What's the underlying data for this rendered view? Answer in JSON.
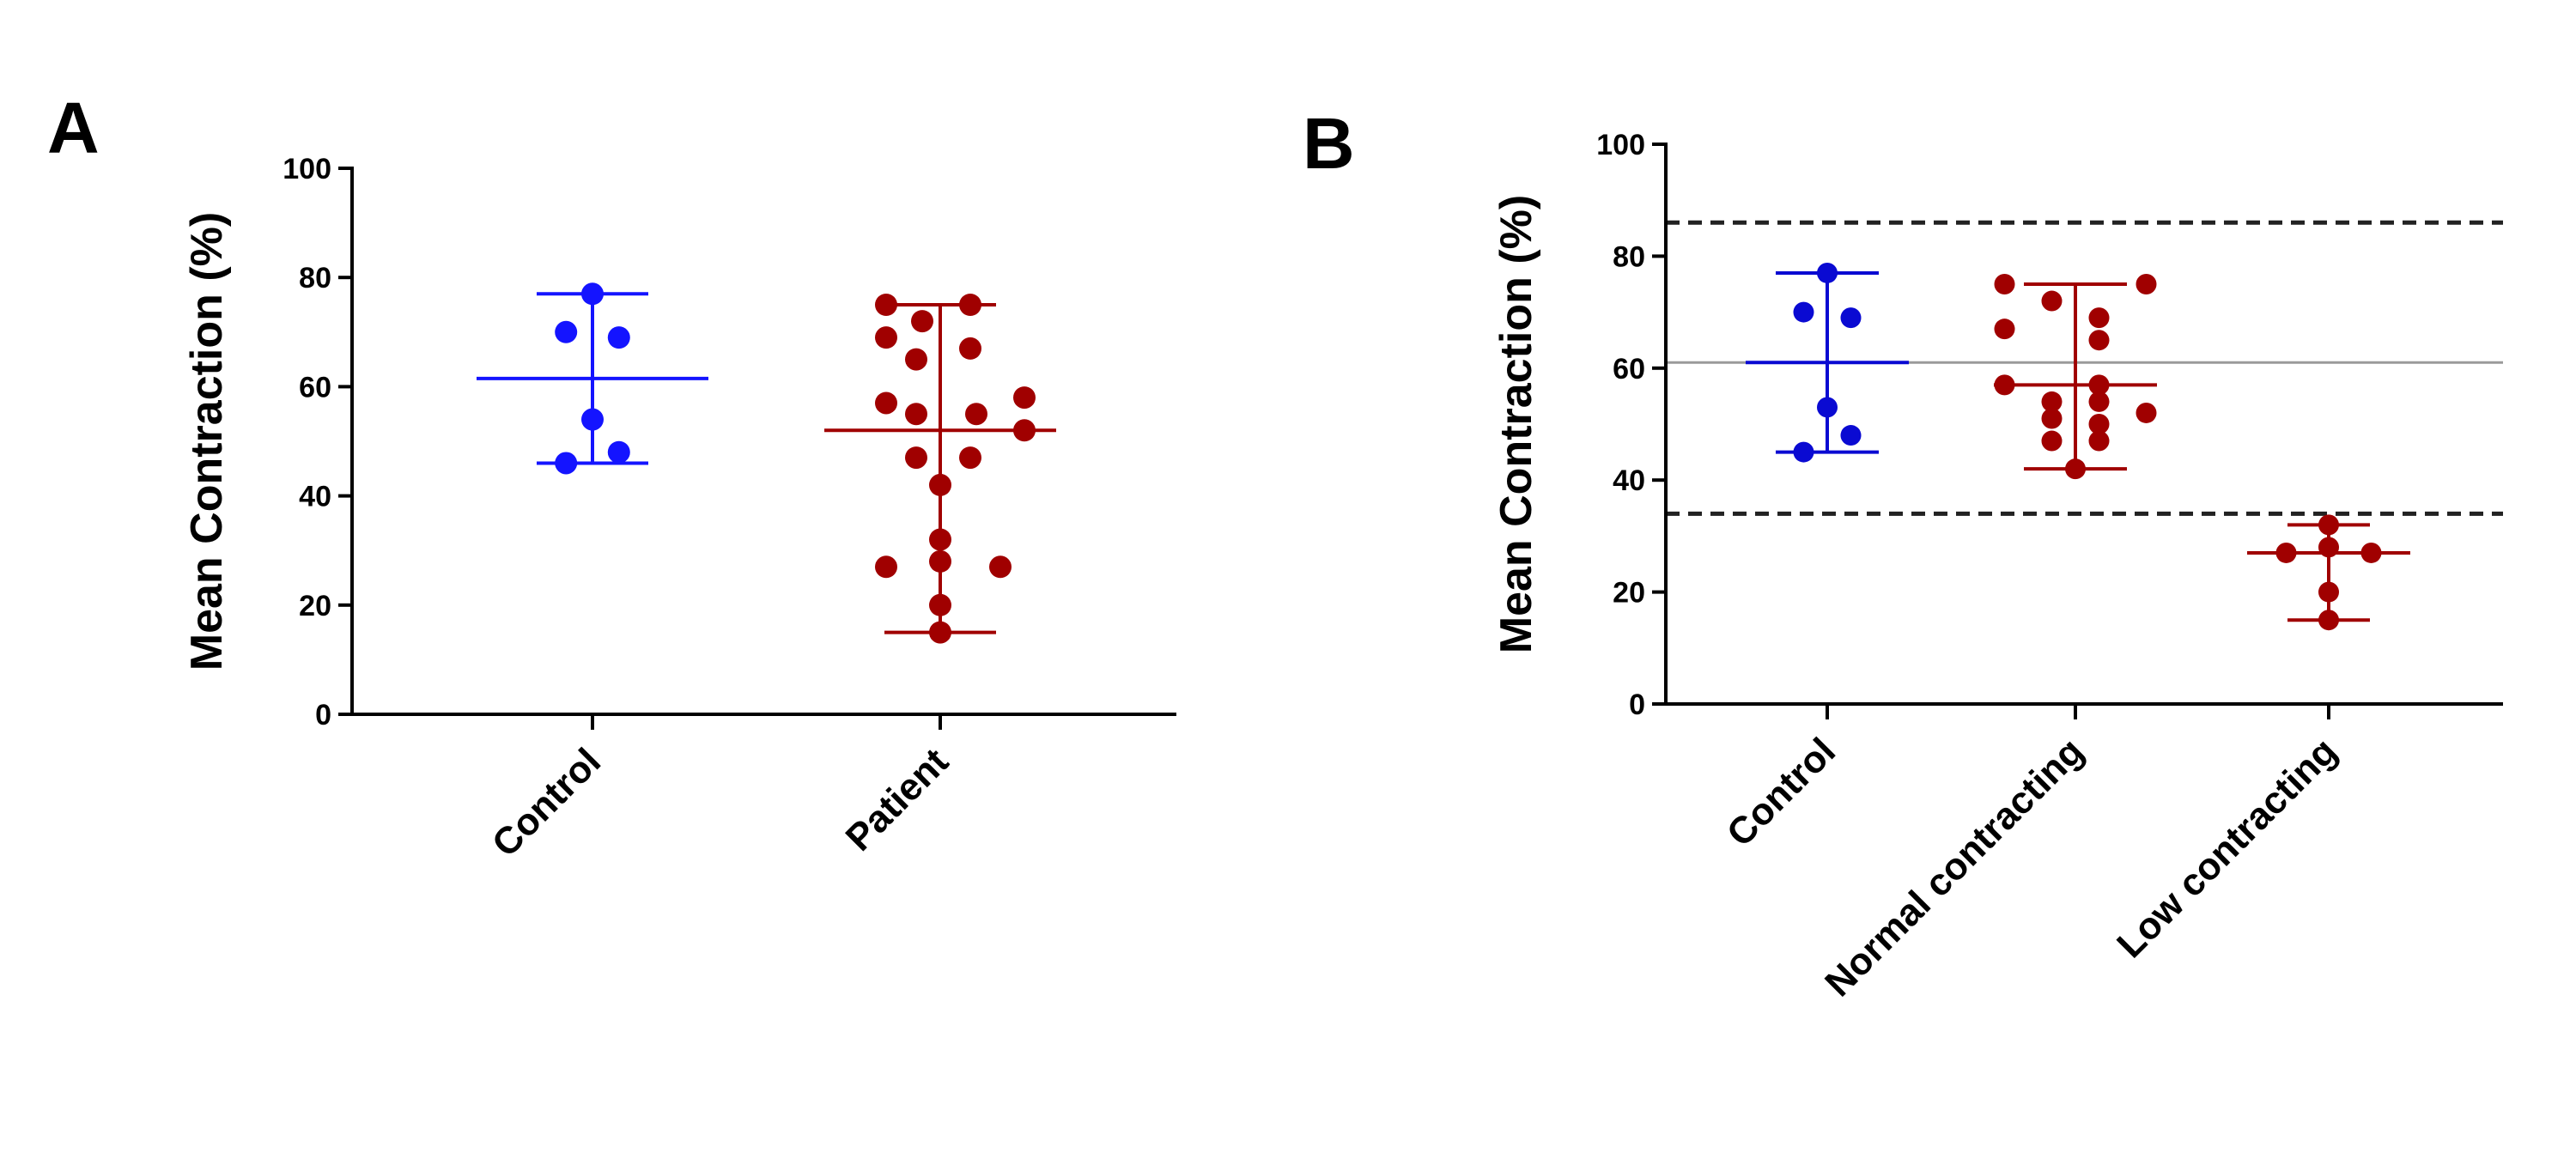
{
  "chart_data": [
    {
      "type": "scatter",
      "panel_label": "A",
      "ylabel": "Mean Contraction (%)",
      "ylim": [
        0,
        100
      ],
      "yticks": [
        0,
        20,
        40,
        60,
        80,
        100
      ],
      "categories": [
        "Control",
        "Patient"
      ],
      "groups": [
        {
          "name": "Control",
          "color": "#1414ff",
          "points": [
            {
              "x": 0,
              "y": 77
            },
            {
              "x": -0.22,
              "y": 70
            },
            {
              "x": 0.22,
              "y": 69
            },
            {
              "x": 0,
              "y": 54
            },
            {
              "x": 0.22,
              "y": 48
            },
            {
              "x": -0.22,
              "y": 46
            }
          ],
          "mean": 61.5,
          "sd_low": 46,
          "sd_high": 77
        },
        {
          "name": "Patient",
          "color": "#a00000",
          "points": [
            {
              "x": -0.45,
              "y": 75
            },
            {
              "x": 0.25,
              "y": 75
            },
            {
              "x": -0.15,
              "y": 72
            },
            {
              "x": -0.45,
              "y": 69
            },
            {
              "x": 0.25,
              "y": 67
            },
            {
              "x": -0.2,
              "y": 65
            },
            {
              "x": 0.7,
              "y": 58
            },
            {
              "x": -0.45,
              "y": 57
            },
            {
              "x": -0.2,
              "y": 55
            },
            {
              "x": 0.3,
              "y": 55
            },
            {
              "x": 0.7,
              "y": 52
            },
            {
              "x": -0.2,
              "y": 47
            },
            {
              "x": 0.25,
              "y": 47
            },
            {
              "x": 0,
              "y": 42
            },
            {
              "x": 0,
              "y": 32
            },
            {
              "x": 0,
              "y": 28
            },
            {
              "x": -0.45,
              "y": 27
            },
            {
              "x": 0.5,
              "y": 27
            },
            {
              "x": 0,
              "y": 20
            },
            {
              "x": 0,
              "y": 15
            }
          ],
          "mean": 52,
          "sd_low": 15,
          "sd_high": 75
        }
      ]
    },
    {
      "type": "scatter",
      "panel_label": "B",
      "ylabel": "Mean Contraction (%)",
      "ylim": [
        0,
        100
      ],
      "yticks": [
        0,
        20,
        40,
        60,
        80,
        100
      ],
      "categories": [
        "Control",
        "Normal contracting",
        "Low contracting"
      ],
      "reference_lines": [
        {
          "y": 86,
          "style": "dashed",
          "color": "#222222"
        },
        {
          "y": 61,
          "style": "solid",
          "color": "#9a9a9a"
        },
        {
          "y": 34,
          "style": "dashed",
          "color": "#222222"
        }
      ],
      "groups": [
        {
          "name": "Control",
          "color": "#0a0ad2",
          "points": [
            {
              "x": 0,
              "y": 77
            },
            {
              "x": -0.25,
              "y": 70
            },
            {
              "x": 0.25,
              "y": 69
            },
            {
              "x": 0,
              "y": 53
            },
            {
              "x": 0.25,
              "y": 48
            },
            {
              "x": -0.25,
              "y": 45
            }
          ],
          "mean": 61,
          "sd_low": 45,
          "sd_high": 77
        },
        {
          "name": "Normal contracting",
          "color": "#a00000",
          "points": [
            {
              "x": -0.75,
              "y": 75
            },
            {
              "x": 0.75,
              "y": 75
            },
            {
              "x": -0.25,
              "y": 72
            },
            {
              "x": 0.25,
              "y": 69
            },
            {
              "x": -0.75,
              "y": 67
            },
            {
              "x": 0.25,
              "y": 65
            },
            {
              "x": -0.75,
              "y": 57
            },
            {
              "x": 0.25,
              "y": 57
            },
            {
              "x": -0.25,
              "y": 54
            },
            {
              "x": 0.25,
              "y": 54
            },
            {
              "x": 0.75,
              "y": 52
            },
            {
              "x": -0.25,
              "y": 51
            },
            {
              "x": 0.25,
              "y": 50
            },
            {
              "x": -0.25,
              "y": 47
            },
            {
              "x": 0.25,
              "y": 47
            },
            {
              "x": 0,
              "y": 42
            }
          ],
          "mean": 57,
          "sd_low": 42,
          "sd_high": 75
        },
        {
          "name": "Low contracting",
          "color": "#a00000",
          "points": [
            {
              "x": 0,
              "y": 32
            },
            {
              "x": 0,
              "y": 28
            },
            {
              "x": -0.45,
              "y": 27
            },
            {
              "x": 0.45,
              "y": 27
            },
            {
              "x": 0,
              "y": 20
            },
            {
              "x": 0,
              "y": 15
            }
          ],
          "mean": 27,
          "sd_low": 15,
          "sd_high": 32
        }
      ]
    }
  ]
}
